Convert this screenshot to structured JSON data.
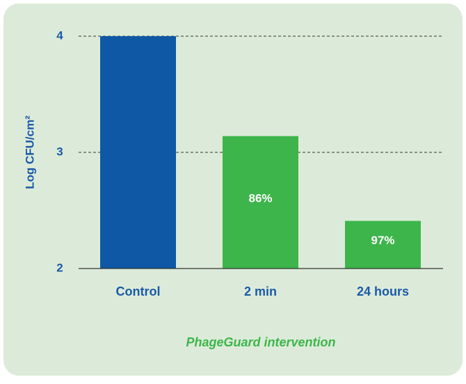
{
  "chart_data": {
    "type": "bar",
    "y_label": "Log CFU/cm²",
    "x_label": "PhageGuard intervention",
    "categories": [
      "Control",
      "2 min",
      "24 hours"
    ],
    "values": [
      4.0,
      3.14,
      2.41
    ],
    "colors": [
      "#0f58a5",
      "#3db54a",
      "#3db54a"
    ],
    "bar_labels": [
      null,
      "86%",
      "97%"
    ],
    "ylim": [
      2,
      4
    ],
    "yticks": [
      2,
      3,
      4
    ],
    "grid": true
  }
}
